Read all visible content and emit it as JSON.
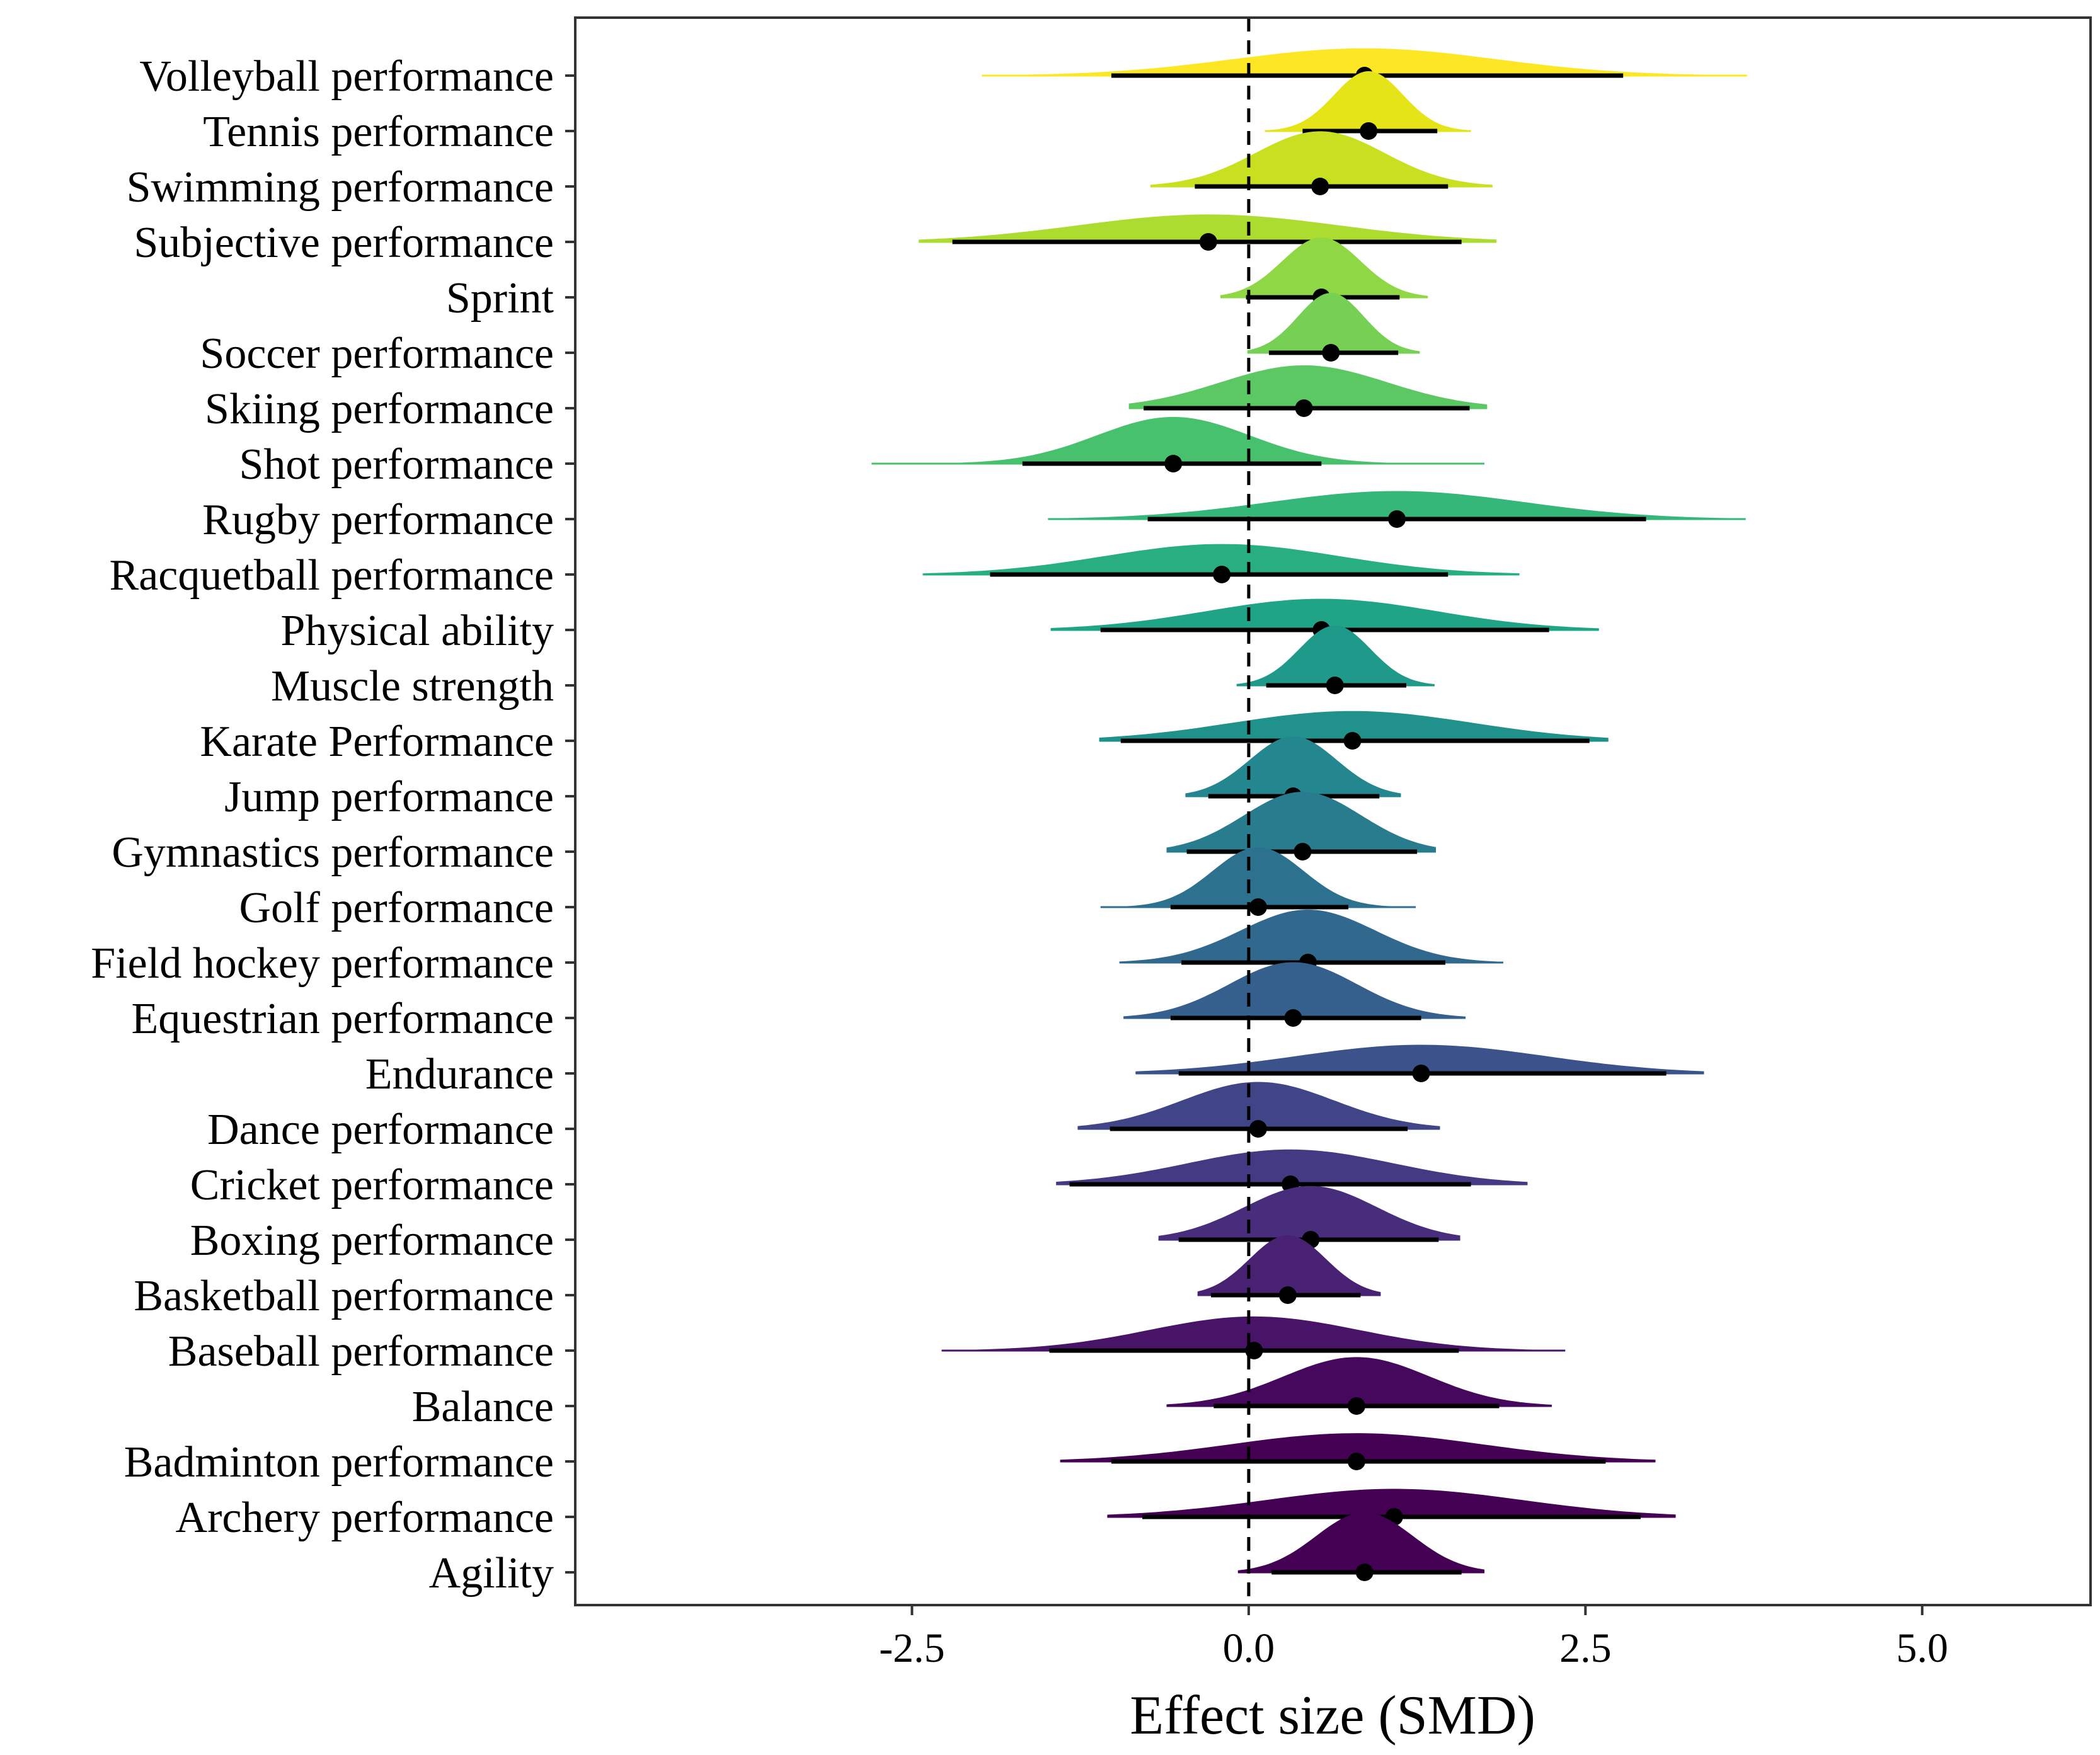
{
  "chart_data": {
    "type": "forest-density",
    "title": "",
    "xlabel": "Effect size (SMD)",
    "ylabel": "",
    "xlim": [
      -5.0,
      6.25
    ],
    "xticks": [
      -2.5,
      0.0,
      2.5,
      5.0
    ],
    "xtick_labels": [
      "-2.5",
      "0.0",
      "2.5",
      "5.0"
    ],
    "reference_line": 0.0,
    "categories": [
      "Volleyball performance",
      "Tennis performance",
      "Swimming performance",
      "Subjective performance",
      "Sprint",
      "Soccer performance",
      "Skiing performance",
      "Shot performance",
      "Rugby performance",
      "Racquetball performance",
      "Physical ability",
      "Muscle strength",
      "Karate Performance",
      "Jump performance",
      "Gymnastics performance",
      "Golf performance",
      "Field hockey performance",
      "Equestrian performance",
      "Endurance",
      "Dance performance",
      "Cricket performance",
      "Boxing performance",
      "Basketball performance",
      "Baseball performance",
      "Balance",
      "Badminton performance",
      "Archery performance",
      "Agility"
    ],
    "estimates": [
      0.86,
      0.89,
      0.53,
      -0.3,
      0.54,
      0.61,
      0.41,
      -0.56,
      1.1,
      -0.2,
      0.54,
      0.64,
      0.77,
      0.33,
      0.4,
      0.07,
      0.44,
      0.33,
      1.28,
      0.07,
      0.31,
      0.46,
      0.29,
      0.04,
      0.8,
      0.8,
      1.08,
      0.86
    ],
    "ci95_low": [
      -1.02,
      0.4,
      -0.4,
      -2.2,
      -0.02,
      0.15,
      -0.78,
      -1.68,
      -0.75,
      -1.92,
      -1.1,
      0.13,
      -0.95,
      -0.3,
      -0.46,
      -0.58,
      -0.5,
      -0.58,
      -0.52,
      -1.03,
      -1.33,
      -0.52,
      -0.28,
      -1.48,
      -0.26,
      -1.02,
      -0.79,
      0.17
    ],
    "ci95_high": [
      2.78,
      1.4,
      1.48,
      1.58,
      1.12,
      1.11,
      1.64,
      0.54,
      2.95,
      1.48,
      2.23,
      1.17,
      2.53,
      0.97,
      1.25,
      0.74,
      1.46,
      1.28,
      3.1,
      1.18,
      1.65,
      1.41,
      0.83,
      1.56,
      1.86,
      2.65,
      2.91,
      1.58
    ],
    "ci99_low": [
      -1.98,
      0.12,
      -0.73,
      -2.45,
      -0.21,
      -0.01,
      -0.89,
      -2.8,
      -1.49,
      -2.42,
      -1.47,
      -0.09,
      -1.11,
      -0.47,
      -0.61,
      -1.1,
      -0.96,
      -0.93,
      -0.84,
      -1.27,
      -1.43,
      -0.67,
      -0.38,
      -2.28,
      -0.61,
      -1.4,
      -1.05,
      -0.08
    ],
    "ci99_high": [
      3.7,
      1.65,
      1.81,
      1.84,
      1.33,
      1.27,
      1.77,
      1.75,
      3.69,
      2.01,
      2.6,
      1.38,
      2.67,
      1.13,
      1.39,
      1.24,
      1.89,
      1.61,
      3.38,
      1.42,
      2.07,
      1.57,
      0.98,
      2.35,
      2.25,
      3.02,
      3.17,
      1.75
    ],
    "colors": [
      "#fde725",
      "#e5e419",
      "#c8e020",
      "#addc30",
      "#8fd744",
      "#75d054",
      "#5cc863",
      "#47c16e",
      "#35b779",
      "#28ae80",
      "#20a486",
      "#1f9a8a",
      "#21918c",
      "#24868e",
      "#287c8e",
      "#2c728e",
      "#31688e",
      "#355f8d",
      "#3b528b",
      "#404588",
      "#443a83",
      "#472d7b",
      "#482173",
      "#481467",
      "#46085c",
      "#440154",
      "#440154",
      "#440154"
    ]
  }
}
